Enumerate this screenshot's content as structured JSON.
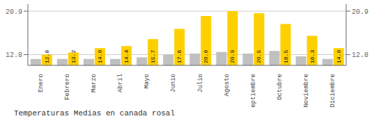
{
  "chart_data": {
    "type": "bar",
    "title": "Temperaturas Medias en canada rosal",
    "categories": [
      "Enero",
      "Febrero",
      "Marzo",
      "Abril",
      "Mayo",
      "Junio",
      "Julio",
      "Agosto",
      "Septiembre",
      "Octubre",
      "Noviembre",
      "Diciembre"
    ],
    "series": [
      {
        "color": "#C0C0C0",
        "values": [
          12.0,
          12.0,
          12.0,
          12.0,
          12.3,
          12.8,
          13.0,
          13.3,
          13.0,
          13.5,
          12.5,
          12.0
        ]
      },
      {
        "color": "#FFD000",
        "values": [
          12.8,
          13.2,
          14.0,
          14.4,
          15.7,
          17.6,
          20.0,
          20.9,
          20.5,
          18.5,
          16.3,
          14.0
        ],
        "data_labels": true,
        "value_labels": [
          "12.8",
          "13.2",
          "14.0",
          "14.4",
          "15.7",
          "17.6",
          "20.0",
          "20.9",
          "20.5",
          "18.5",
          "16.3",
          "14.0"
        ]
      }
    ],
    "ylim": [
      10.8,
      22.2
    ],
    "yticks": [
      12.8,
      20.9
    ],
    "y2lim": [
      10.8,
      22.2
    ],
    "y2ticks": [
      12.8,
      20.9
    ],
    "grid": true
  }
}
